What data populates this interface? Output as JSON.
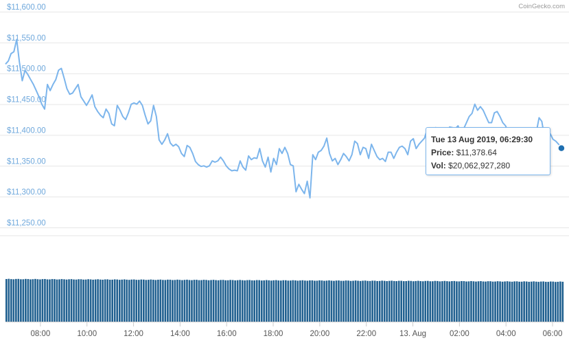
{
  "credit": "CoinGecko.com",
  "tooltip": {
    "date": "Tue 13 Aug 2019, 06:29:30",
    "price_label": "Price:",
    "price_value": "$11,378.64",
    "vol_label": "Vol:",
    "vol_value": "$20,062,927,280"
  },
  "colors": {
    "line": "#7cb5ec",
    "bars": "#1f5f8f",
    "axis_label": "#6fa8dc",
    "marker": "#1f6fb0"
  },
  "chart_data": {
    "type": "line",
    "title": "",
    "xlabel": "",
    "ylabel": "",
    "ylim": [
      11250,
      11600
    ],
    "y_ticks": [
      "$11,600.00",
      "$11,550.00",
      "$11,500.00",
      "$11,450.00",
      "$11,400.00",
      "$11,350.00",
      "$11,300.00",
      "$11,250.00"
    ],
    "x_ticks": [
      "08:00",
      "10:00",
      "12:00",
      "14:00",
      "16:00",
      "18:00",
      "20:00",
      "22:00",
      "13. Aug",
      "02:00",
      "04:00",
      "06:00"
    ],
    "x_hours_range": [
      6.5,
      30.5
    ],
    "grid": true,
    "series": [
      {
        "values": [
          [
            6.5,
            11515
          ],
          [
            6.62,
            11520
          ],
          [
            6.74,
            11532
          ],
          [
            6.86,
            11535
          ],
          [
            6.98,
            11555
          ],
          [
            7.1,
            11518
          ],
          [
            7.22,
            11488
          ],
          [
            7.34,
            11505
          ],
          [
            7.46,
            11498
          ],
          [
            7.58,
            11490
          ],
          [
            7.7,
            11482
          ],
          [
            7.82,
            11472
          ],
          [
            7.94,
            11462
          ],
          [
            8.06,
            11450
          ],
          [
            8.18,
            11442
          ],
          [
            8.3,
            11482
          ],
          [
            8.42,
            11472
          ],
          [
            8.54,
            11482
          ],
          [
            8.66,
            11490
          ],
          [
            8.78,
            11505
          ],
          [
            8.9,
            11508
          ],
          [
            9.02,
            11492
          ],
          [
            9.14,
            11475
          ],
          [
            9.26,
            11466
          ],
          [
            9.38,
            11468
          ],
          [
            9.5,
            11475
          ],
          [
            9.62,
            11482
          ],
          [
            9.74,
            11462
          ],
          [
            9.86,
            11455
          ],
          [
            9.98,
            11448
          ],
          [
            10.1,
            11456
          ],
          [
            10.22,
            11465
          ],
          [
            10.34,
            11446
          ],
          [
            10.46,
            11438
          ],
          [
            10.58,
            11432
          ],
          [
            10.7,
            11428
          ],
          [
            10.82,
            11442
          ],
          [
            10.94,
            11435
          ],
          [
            11.06,
            11418
          ],
          [
            11.18,
            11415
          ],
          [
            11.3,
            11448
          ],
          [
            11.42,
            11440
          ],
          [
            11.54,
            11430
          ],
          [
            11.66,
            11425
          ],
          [
            11.78,
            11436
          ],
          [
            11.9,
            11450
          ],
          [
            12.02,
            11452
          ],
          [
            12.14,
            11450
          ],
          [
            12.26,
            11455
          ],
          [
            12.38,
            11448
          ],
          [
            12.5,
            11432
          ],
          [
            12.62,
            11418
          ],
          [
            12.74,
            11423
          ],
          [
            12.86,
            11448
          ],
          [
            12.98,
            11430
          ],
          [
            13.1,
            11392
          ],
          [
            13.22,
            11385
          ],
          [
            13.34,
            11392
          ],
          [
            13.46,
            11402
          ],
          [
            13.58,
            11387
          ],
          [
            13.7,
            11382
          ],
          [
            13.82,
            11385
          ],
          [
            13.94,
            11381
          ],
          [
            14.06,
            11370
          ],
          [
            14.18,
            11365
          ],
          [
            14.3,
            11383
          ],
          [
            14.42,
            11380
          ],
          [
            14.54,
            11370
          ],
          [
            14.66,
            11357
          ],
          [
            14.78,
            11352
          ],
          [
            14.9,
            11349
          ],
          [
            15.02,
            11350
          ],
          [
            15.14,
            11348
          ],
          [
            15.26,
            11350
          ],
          [
            15.38,
            11358
          ],
          [
            15.5,
            11356
          ],
          [
            15.62,
            11358
          ],
          [
            15.74,
            11364
          ],
          [
            15.86,
            11358
          ],
          [
            15.98,
            11350
          ],
          [
            16.1,
            11345
          ],
          [
            16.22,
            11342
          ],
          [
            16.34,
            11343
          ],
          [
            16.46,
            11342
          ],
          [
            16.58,
            11358
          ],
          [
            16.7,
            11348
          ],
          [
            16.82,
            11343
          ],
          [
            16.94,
            11366
          ],
          [
            17.06,
            11360
          ],
          [
            17.18,
            11363
          ],
          [
            17.3,
            11362
          ],
          [
            17.42,
            11378
          ],
          [
            17.54,
            11358
          ],
          [
            17.66,
            11348
          ],
          [
            17.78,
            11364
          ],
          [
            17.9,
            11340
          ],
          [
            18.02,
            11362
          ],
          [
            18.14,
            11352
          ],
          [
            18.26,
            11378
          ],
          [
            18.38,
            11370
          ],
          [
            18.5,
            11380
          ],
          [
            18.62,
            11370
          ],
          [
            18.74,
            11352
          ],
          [
            18.86,
            11350
          ],
          [
            18.98,
            11308
          ],
          [
            19.1,
            11320
          ],
          [
            19.22,
            11312
          ],
          [
            19.34,
            11305
          ],
          [
            19.46,
            11325
          ],
          [
            19.58,
            11298
          ],
          [
            19.7,
            11368
          ],
          [
            19.82,
            11360
          ],
          [
            19.94,
            11372
          ],
          [
            20.06,
            11375
          ],
          [
            20.18,
            11382
          ],
          [
            20.3,
            11395
          ],
          [
            20.42,
            11370
          ],
          [
            20.54,
            11358
          ],
          [
            20.66,
            11362
          ],
          [
            20.78,
            11352
          ],
          [
            20.9,
            11360
          ],
          [
            21.02,
            11370
          ],
          [
            21.14,
            11365
          ],
          [
            21.26,
            11358
          ],
          [
            21.38,
            11368
          ],
          [
            21.5,
            11390
          ],
          [
            21.62,
            11386
          ],
          [
            21.74,
            11368
          ],
          [
            21.86,
            11380
          ],
          [
            21.98,
            11378
          ],
          [
            22.1,
            11362
          ],
          [
            22.22,
            11385
          ],
          [
            22.34,
            11375
          ],
          [
            22.46,
            11365
          ],
          [
            22.58,
            11360
          ],
          [
            22.7,
            11362
          ],
          [
            22.82,
            11357
          ],
          [
            22.94,
            11372
          ],
          [
            23.06,
            11372
          ],
          [
            23.18,
            11362
          ],
          [
            23.3,
            11372
          ],
          [
            23.42,
            11380
          ],
          [
            23.54,
            11382
          ],
          [
            23.66,
            11378
          ],
          [
            23.78,
            11368
          ],
          [
            23.9,
            11390
          ],
          [
            24.02,
            11394
          ],
          [
            24.14,
            11378
          ],
          [
            24.26,
            11385
          ],
          [
            24.38,
            11390
          ],
          [
            24.5,
            11395
          ],
          [
            24.62,
            11410
          ],
          [
            24.74,
            11405
          ],
          [
            24.86,
            11408
          ],
          [
            24.98,
            11412
          ],
          [
            25.1,
            11409
          ],
          [
            25.22,
            11410
          ],
          [
            25.34,
            11398
          ],
          [
            25.46,
            11402
          ],
          [
            25.58,
            11413
          ],
          [
            25.7,
            11412
          ],
          [
            25.82,
            11410
          ],
          [
            25.94,
            11415
          ],
          [
            26.06,
            11403
          ],
          [
            26.18,
            11410
          ],
          [
            26.3,
            11420
          ],
          [
            26.42,
            11430
          ],
          [
            26.54,
            11435
          ],
          [
            26.66,
            11450
          ],
          [
            26.78,
            11440
          ],
          [
            26.9,
            11446
          ],
          [
            27.02,
            11440
          ],
          [
            27.14,
            11430
          ],
          [
            27.26,
            11420
          ],
          [
            27.38,
            11420
          ],
          [
            27.5,
            11436
          ],
          [
            27.62,
            11438
          ],
          [
            27.74,
            11430
          ],
          [
            27.86,
            11420
          ],
          [
            27.98,
            11415
          ],
          [
            28.1,
            11405
          ],
          [
            28.22,
            11399
          ],
          [
            28.34,
            11404
          ],
          [
            28.46,
            11395
          ],
          [
            28.58,
            11388
          ],
          [
            28.7,
            11398
          ],
          [
            28.82,
            11395
          ],
          [
            28.94,
            11388
          ],
          [
            29.06,
            11378
          ],
          [
            29.18,
            11398
          ],
          [
            29.3,
            11404
          ],
          [
            29.42,
            11428
          ],
          [
            29.54,
            11422
          ],
          [
            29.66,
            11395
          ],
          [
            29.78,
            11392
          ],
          [
            29.9,
            11402
          ],
          [
            30.02,
            11393
          ],
          [
            30.14,
            11390
          ],
          [
            30.26,
            11385
          ],
          [
            30.38,
            11378.64
          ]
        ]
      }
    ],
    "volume_series": {
      "count": 232,
      "start": 11.0,
      "end": 10.3
    },
    "highlight_point": {
      "x": 30.38,
      "y": 11378.64
    }
  }
}
